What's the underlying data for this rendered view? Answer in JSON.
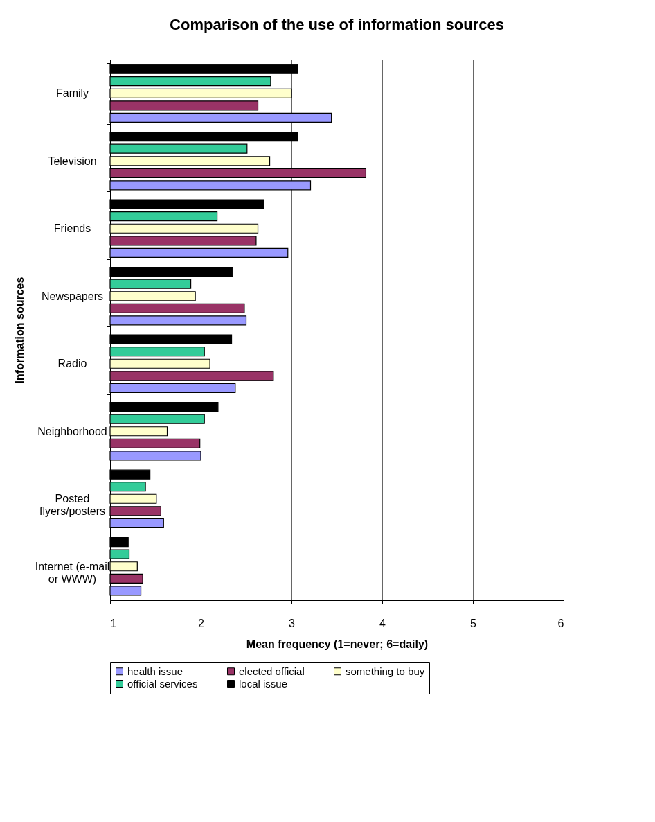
{
  "chart_data": {
    "type": "bar",
    "orientation": "horizontal",
    "title": "Comparison of the use of information sources",
    "xlabel": "Mean frequency (1=never; 6=daily)",
    "ylabel": "Information sources",
    "categories": [
      "Family",
      "Television",
      "Friends",
      "Newspapers",
      "Radio",
      "Neighborhood",
      "Posted flyers/posters",
      "Internet (e-mail or WWW)"
    ],
    "series": [
      {
        "name": "health issue",
        "color": "#9999ff",
        "values": [
          3.44,
          3.21,
          2.96,
          2.5,
          2.38,
          2.0,
          1.59,
          1.34
        ]
      },
      {
        "name": "elected official",
        "color": "#993366",
        "values": [
          2.63,
          3.82,
          2.61,
          2.48,
          2.8,
          1.99,
          1.56,
          1.36
        ]
      },
      {
        "name": "something to buy",
        "color": "#ffffcc",
        "values": [
          3.0,
          2.76,
          2.63,
          1.94,
          2.1,
          1.63,
          1.51,
          1.3
        ]
      },
      {
        "name": "official services",
        "color": "#33cc99",
        "values": [
          2.77,
          2.51,
          2.18,
          1.89,
          2.04,
          2.04,
          1.39,
          1.21
        ]
      },
      {
        "name": "local issue",
        "color": "#000000",
        "values": [
          3.07,
          3.07,
          2.69,
          2.35,
          2.34,
          2.19,
          1.44,
          1.2
        ]
      }
    ],
    "xlim": [
      1,
      6
    ],
    "xticks": [
      1,
      2,
      3,
      4,
      5,
      6
    ],
    "grid": "x",
    "legend": "bottom"
  }
}
